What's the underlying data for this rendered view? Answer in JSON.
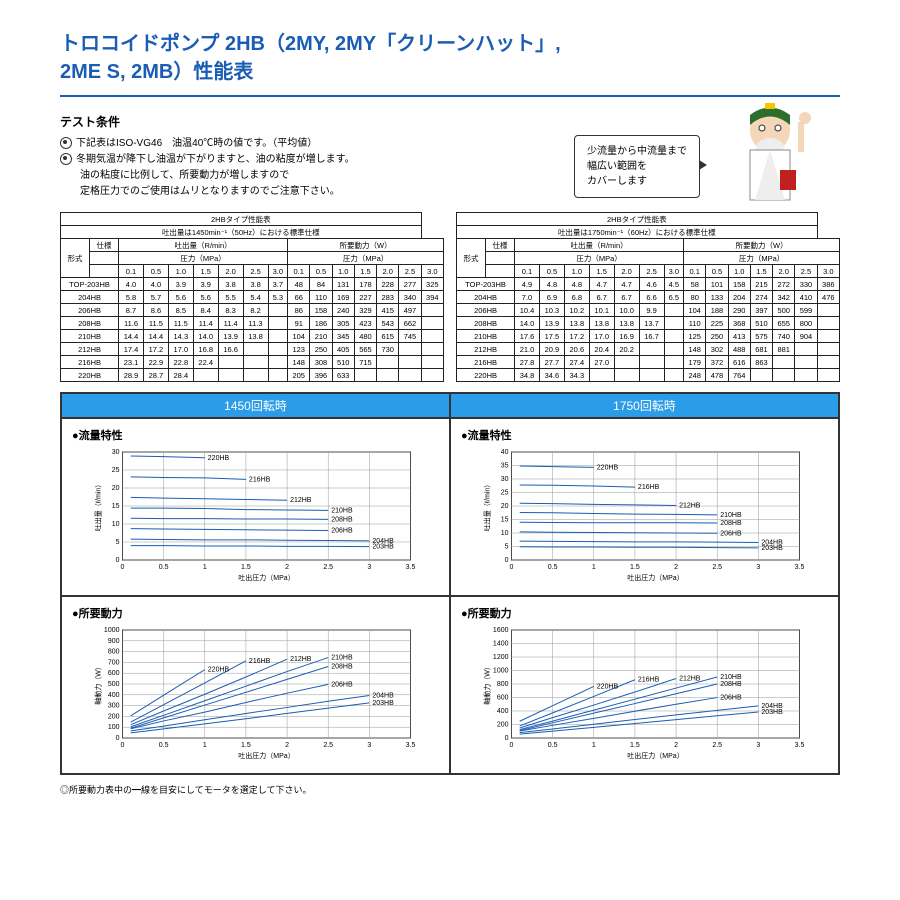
{
  "title_lines": [
    "トロコイドポンプ 2HB（2MY, 2MY「クリーンハット」,",
    "2ME S, 2MB）性能表"
  ],
  "cond_head": "テスト条件",
  "cond": {
    "line1": "下記表はISO-VG46　油温40℃時の値です。（平均値）",
    "line2a": "冬期気温が降下し油温が下がりますと、油の粘度が増します。",
    "line2b": "油の粘度に比例して、所要動力が増しますので",
    "line2c": "定格圧力でのご使用はムリとなりますのでご注意下さい。"
  },
  "balloon": {
    "l1": "少流量から中流量まで",
    "l2": "幅広い範囲を",
    "l3": "カバーします"
  },
  "table_titles": {
    "left_top": "2HBタイプ性能表",
    "left_sub": "吐出量は1450min⁻¹（50Hz）における標準仕様",
    "right_top": "2HBタイプ性能表",
    "right_sub": "吐出量は1750min⁻¹（60Hz）における標準仕様"
  },
  "col_labels": {
    "spec": "仕様",
    "disc": "吐出量（R/min）",
    "pow": "所要動力（W）",
    "press": "圧力（MPa）",
    "model": "形式"
  },
  "press_steps": [
    "0.1",
    "0.5",
    "1.0",
    "1.5",
    "2.0",
    "2.5",
    "3.0"
  ],
  "rows_50": [
    {
      "m": "TOP-203HB",
      "d": [
        "4.0",
        "4.0",
        "3.9",
        "3.9",
        "3.8",
        "3.8",
        "3.7"
      ],
      "p": [
        "48",
        "84",
        "131",
        "178",
        "228",
        "277",
        "325"
      ]
    },
    {
      "m": "204HB",
      "d": [
        "5.8",
        "5.7",
        "5.6",
        "5.6",
        "5.5",
        "5.4",
        "5.3"
      ],
      "p": [
        "66",
        "110",
        "169",
        "227",
        "283",
        "340",
        "394"
      ]
    },
    {
      "m": "206HB",
      "d": [
        "8.7",
        "8.6",
        "8.5",
        "8.4",
        "8.3",
        "8.2",
        ""
      ],
      "p": [
        "86",
        "158",
        "240",
        "329",
        "415",
        "497",
        ""
      ]
    },
    {
      "m": "208HB",
      "d": [
        "11.6",
        "11.5",
        "11.5",
        "11.4",
        "11.4",
        "11.3",
        ""
      ],
      "p": [
        "91",
        "186",
        "305",
        "423",
        "543",
        "662",
        ""
      ]
    },
    {
      "m": "210HB",
      "d": [
        "14.4",
        "14.4",
        "14.3",
        "14.0",
        "13.9",
        "13.8",
        ""
      ],
      "p": [
        "104",
        "210",
        "345",
        "480",
        "615",
        "745",
        ""
      ]
    },
    {
      "m": "212HB",
      "d": [
        "17.4",
        "17.2",
        "17.0",
        "16.8",
        "16.6",
        "",
        ""
      ],
      "p": [
        "123",
        "250",
        "405",
        "565",
        "730",
        "",
        ""
      ]
    },
    {
      "m": "216HB",
      "d": [
        "23.1",
        "22.9",
        "22.8",
        "22.4",
        "",
        "",
        ""
      ],
      "p": [
        "148",
        "308",
        "510",
        "715",
        "",
        "",
        ""
      ]
    },
    {
      "m": "220HB",
      "d": [
        "28.9",
        "28.7",
        "28.4",
        "",
        "",
        "",
        ""
      ],
      "p": [
        "205",
        "396",
        "633",
        "",
        "",
        "",
        ""
      ]
    }
  ],
  "rows_60": [
    {
      "m": "TOP-203HB",
      "d": [
        "4.9",
        "4.8",
        "4.8",
        "4.7",
        "4.7",
        "4.6",
        "4.5"
      ],
      "p": [
        "58",
        "101",
        "158",
        "215",
        "272",
        "330",
        "386"
      ]
    },
    {
      "m": "204HB",
      "d": [
        "7.0",
        "6.9",
        "6.8",
        "6.7",
        "6.7",
        "6.6",
        "6.5"
      ],
      "p": [
        "80",
        "133",
        "204",
        "274",
        "342",
        "410",
        "476"
      ]
    },
    {
      "m": "206HB",
      "d": [
        "10.4",
        "10.3",
        "10.2",
        "10.1",
        "10.0",
        "9.9",
        ""
      ],
      "p": [
        "104",
        "188",
        "290",
        "397",
        "500",
        "599",
        ""
      ]
    },
    {
      "m": "208HB",
      "d": [
        "14.0",
        "13.9",
        "13.8",
        "13.8",
        "13.8",
        "13.7",
        ""
      ],
      "p": [
        "110",
        "225",
        "368",
        "510",
        "655",
        "800",
        ""
      ]
    },
    {
      "m": "210HB",
      "d": [
        "17.6",
        "17.5",
        "17.2",
        "17.0",
        "16.9",
        "16.7",
        ""
      ],
      "p": [
        "125",
        "250",
        "413",
        "575",
        "740",
        "904",
        ""
      ]
    },
    {
      "m": "212HB",
      "d": [
        "21.0",
        "20.9",
        "20.6",
        "20.4",
        "20.2",
        "",
        ""
      ],
      "p": [
        "148",
        "302",
        "488",
        "681",
        "881",
        "",
        ""
      ]
    },
    {
      "m": "216HB",
      "d": [
        "27.8",
        "27.7",
        "27.4",
        "27.0",
        "",
        "",
        ""
      ],
      "p": [
        "179",
        "372",
        "616",
        "863",
        "",
        "",
        ""
      ]
    },
    {
      "m": "220HB",
      "d": [
        "34.8",
        "34.6",
        "34.3",
        "",
        "",
        "",
        ""
      ],
      "p": [
        "248",
        "478",
        "764",
        "",
        "",
        "",
        ""
      ]
    }
  ],
  "charts": {
    "left_head": "1450回転時",
    "right_head": "1750回転時",
    "flow_title": "●流量特性",
    "pow_title": "●所要動力",
    "xlabel": "吐出圧力（MPa）",
    "ylabel_flow": "吐出量（ℓ/min）",
    "ylabel_pow": "軸動力（W）",
    "xticks": [
      "0",
      "0.5",
      "1",
      "1.5",
      "2",
      "2.5",
      "3",
      "3.5"
    ],
    "flow50_yticks": [
      "0",
      "5",
      "10",
      "15",
      "20",
      "25",
      "30"
    ],
    "flow60_yticks": [
      "0",
      "5",
      "10",
      "15",
      "20",
      "25",
      "30",
      "35",
      "40"
    ],
    "pow50_yticks": [
      "0",
      "100",
      "200",
      "300",
      "400",
      "500",
      "600",
      "700",
      "800",
      "900",
      "1000"
    ],
    "pow60_yticks": [
      "0",
      "200",
      "400",
      "600",
      "800",
      "1000",
      "1200",
      "1400",
      "1600"
    ],
    "series": [
      "203HB",
      "204HB",
      "206HB",
      "208HB",
      "210HB",
      "212HB",
      "216HB",
      "220HB"
    ],
    "curve_color": "#1a5db5",
    "grid_color": "#999999",
    "background": "#ffffff"
  },
  "note": "◎所要動力表中の━線を目安にしてモータを選定して下さい。"
}
